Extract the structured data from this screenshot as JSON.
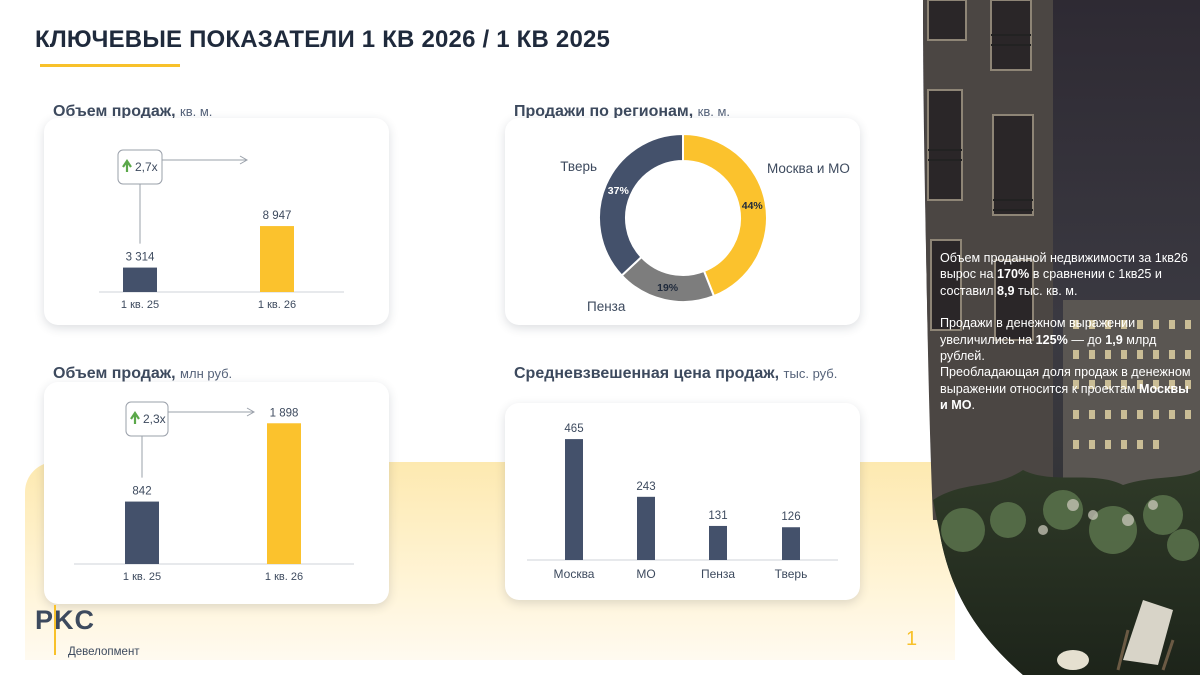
{
  "title": "КЛЮЧЕВЫЕ ПОКАЗАТЕЛИ 1 КВ 2026 / 1 КВ 2025",
  "colors": {
    "navy": "#44516b",
    "yellow": "#fbc22d",
    "accent_line": "#f8c12a",
    "grey": "#7d7d7d",
    "growth_arrow": "#5ba84a"
  },
  "sections": {
    "sales_area": {
      "head": "Объем продаж,",
      "unit": "кв. м."
    },
    "regions": {
      "head": "Продажи по регионам,",
      "unit": "кв. м."
    },
    "sales_money": {
      "head": "Объем продаж,",
      "unit": "млн руб."
    },
    "avg_price": {
      "head": "Средневзвешенная цена продаж,",
      "unit": "тыс. руб."
    }
  },
  "chart_data": [
    {
      "type": "bar",
      "categories": [
        "1 кв. 25",
        "1 кв. 26"
      ],
      "values": [
        3314,
        8947
      ],
      "value_labels": [
        "3 314",
        "8 947"
      ],
      "growth_label": "2,7x",
      "ylim": [
        0,
        9500
      ]
    },
    {
      "type": "pie",
      "variant": "donut",
      "slices": [
        {
          "label": "Москва и МО",
          "value": 44,
          "value_label": "44%",
          "color": "#fbc22d"
        },
        {
          "label": "Пенза",
          "value": 19,
          "value_label": "19%",
          "color": "#7d7d7d"
        },
        {
          "label": "Тверь",
          "value": 37,
          "value_label": "37%",
          "color": "#44516b"
        }
      ]
    },
    {
      "type": "bar",
      "categories": [
        "1 кв. 25",
        "1 кв. 26"
      ],
      "values": [
        842,
        1898
      ],
      "value_labels": [
        "842",
        "1 898"
      ],
      "growth_label": "2,3x",
      "ylim": [
        0,
        2050
      ]
    },
    {
      "type": "bar",
      "categories": [
        "Москва",
        "МО",
        "Пенза",
        "Тверь"
      ],
      "values": [
        465,
        243,
        131,
        126
      ],
      "value_labels": [
        "465",
        "243",
        "131",
        "126"
      ],
      "ylim": [
        0,
        500
      ]
    }
  ],
  "side": {
    "p1_a": "Объем проданной недвижимости за 1кв26 вырос на ",
    "p1_b": "170%",
    "p1_c": " в сравнении с 1кв25 и составил ",
    "p1_d": "8,9",
    "p1_e": " тыс. кв. м.",
    "p2_a": "Продажи в денежном выражении увеличились на ",
    "p2_b": "125%",
    "p2_c": " — до ",
    "p2_d": "1,9",
    "p2_e": " млрд рублей.",
    "p3_a": "Преобладающая доля продаж в денежном выражении относится к проектам ",
    "p3_b": "Москвы и МО",
    "p3_c": "."
  },
  "logo": {
    "mark": "PKC",
    "sub": "Девелопмент"
  },
  "page_number": "1"
}
